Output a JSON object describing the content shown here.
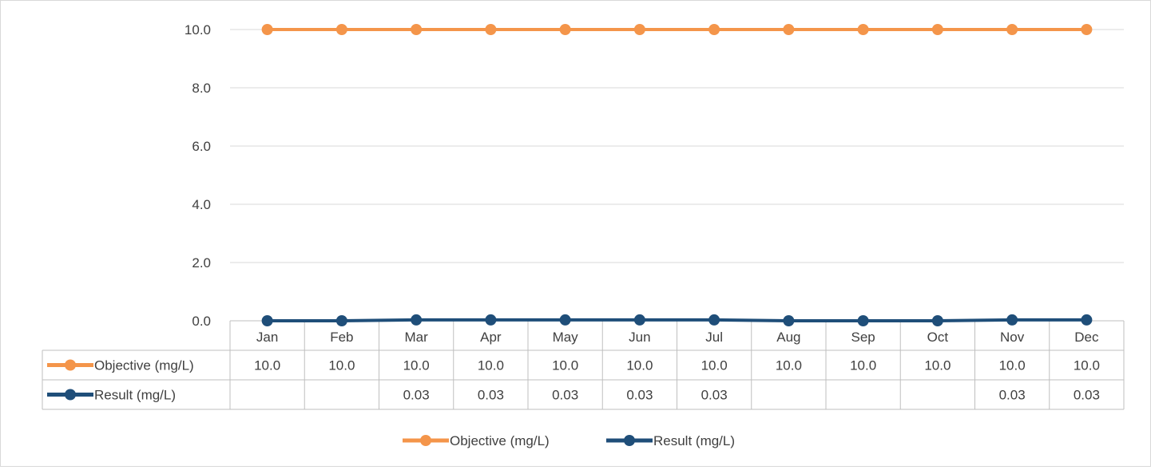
{
  "chart_data": {
    "type": "line",
    "categories": [
      "Jan",
      "Feb",
      "Mar",
      "Apr",
      "May",
      "Jun",
      "Jul",
      "Aug",
      "Sep",
      "Oct",
      "Nov",
      "Dec"
    ],
    "ylim": [
      0,
      10
    ],
    "yticks": [
      "0.0",
      "2.0",
      "4.0",
      "6.0",
      "8.0",
      "10.0"
    ],
    "grid": true,
    "legend_position": "bottom",
    "data_table": true,
    "series": [
      {
        "name": "Objective (mg/L)",
        "color": "#f4954a",
        "values": [
          10.0,
          10.0,
          10.0,
          10.0,
          10.0,
          10.0,
          10.0,
          10.0,
          10.0,
          10.0,
          10.0,
          10.0
        ],
        "table_labels": [
          "10.0",
          "10.0",
          "10.0",
          "10.0",
          "10.0",
          "10.0",
          "10.0",
          "10.0",
          "10.0",
          "10.0",
          "10.0",
          "10.0"
        ]
      },
      {
        "name": "Result (mg/L)",
        "color": "#1f4e79",
        "values": [
          0.0,
          0.0,
          0.03,
          0.03,
          0.03,
          0.03,
          0.03,
          0.0,
          0.0,
          0.0,
          0.03,
          0.03
        ],
        "table_labels": [
          "",
          "",
          "0.03",
          "0.03",
          "0.03",
          "0.03",
          "0.03",
          "",
          "",
          "",
          "0.03",
          "0.03"
        ]
      }
    ]
  }
}
